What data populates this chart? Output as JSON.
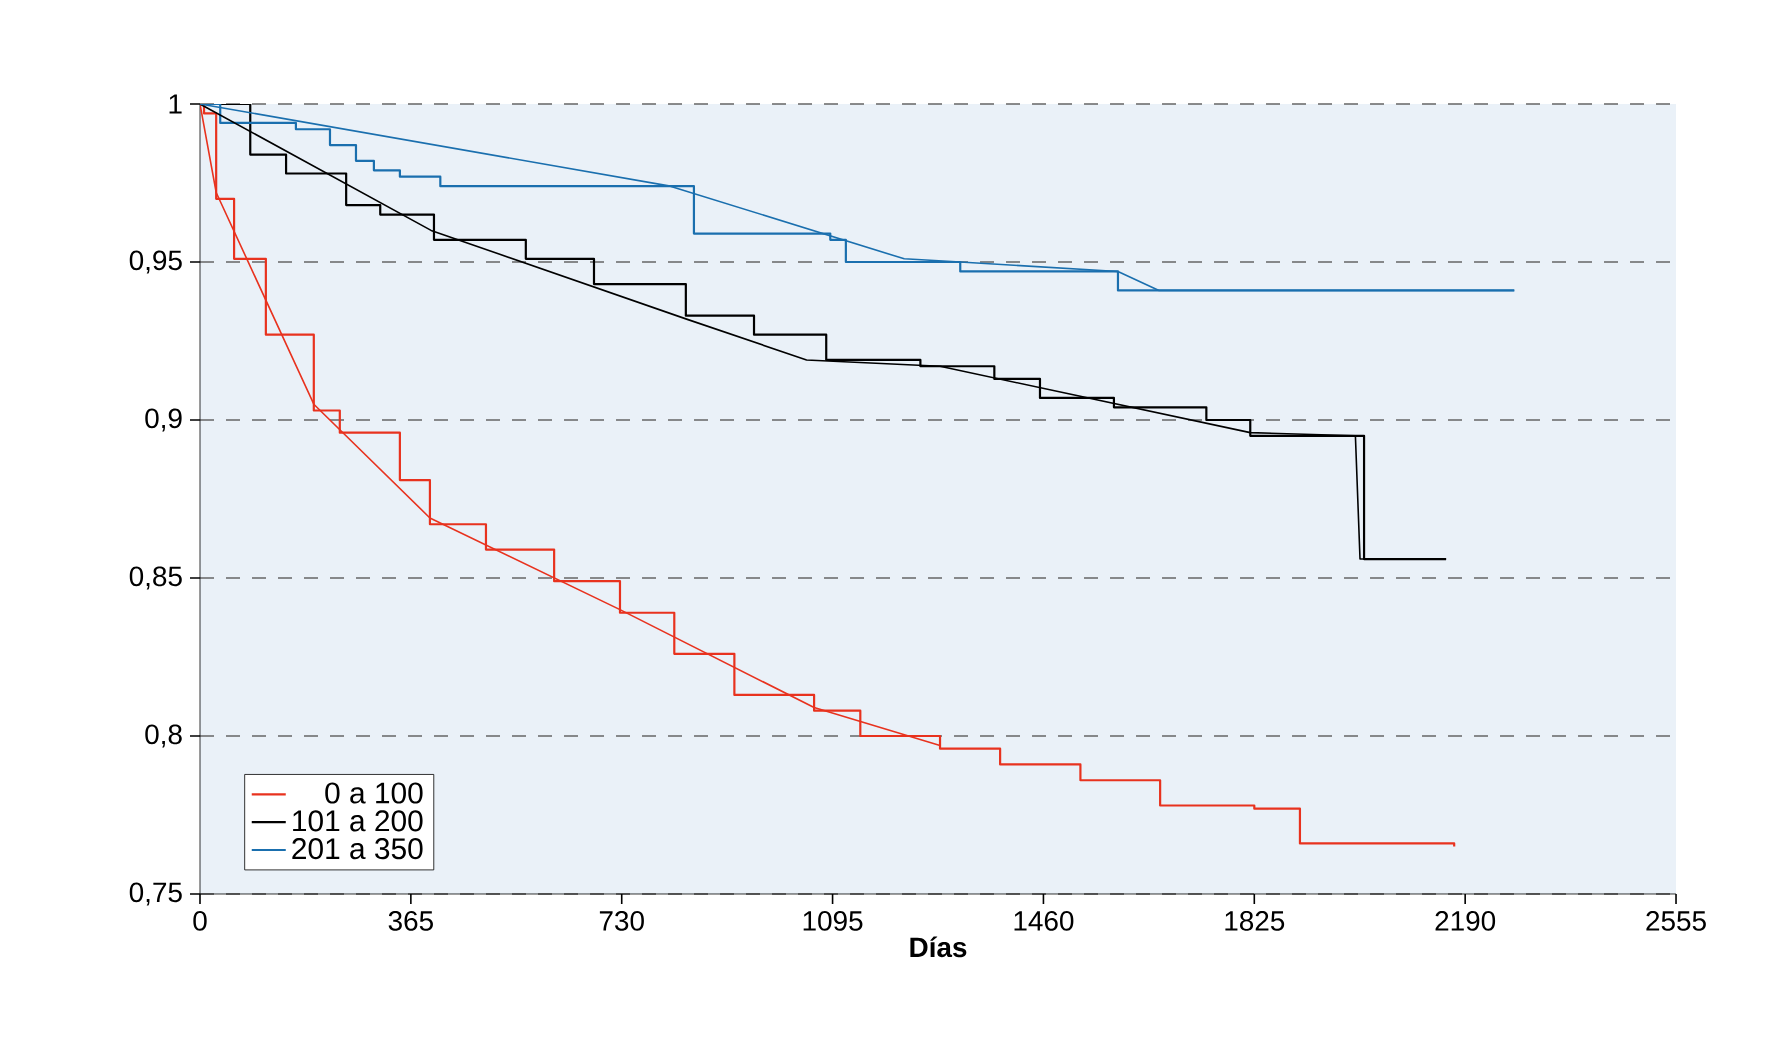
{
  "chart_data": {
    "type": "step",
    "xlabel": "Días",
    "xlim": [
      0,
      2555
    ],
    "ylim": [
      0.75,
      1
    ],
    "xticks": [
      0,
      365,
      730,
      1095,
      1460,
      1825,
      2190,
      2555
    ],
    "yticks": [
      {
        "value": 0.75,
        "label": "0,75"
      },
      {
        "value": 0.8,
        "label": "0,8"
      },
      {
        "value": 0.85,
        "label": "0,85"
      },
      {
        "value": 0.9,
        "label": "0,9"
      },
      {
        "value": 0.95,
        "label": "0,95"
      },
      1
    ],
    "grid": "y",
    "legend": "bottom left",
    "line_style": "solid",
    "series": [
      {
        "name": "0 a 100",
        "type": "step",
        "color": "#e8321e",
        "x": [
          0,
          7,
          28,
          59,
          114,
          197,
          242,
          346,
          398,
          495,
          613,
          727,
          821,
          925,
          1063,
          1143,
          1281,
          1385,
          1524,
          1662,
          1825,
          1904,
          2171
        ],
        "values": [
          1,
          0.997,
          0.97,
          0.951,
          0.927,
          0.903,
          0.896,
          0.881,
          0.867,
          0.859,
          0.849,
          0.839,
          0.826,
          0.813,
          0.808,
          0.8,
          0.796,
          0.791,
          0.786,
          0.778,
          0.777,
          0.766,
          0.765
        ]
      },
      {
        "name": "101 a 200",
        "type": "step",
        "color": "#000000",
        "x": [
          0,
          87,
          149,
          253,
          312,
          405,
          564,
          682,
          841,
          959,
          1084,
          1247,
          1375,
          1454,
          1582,
          1742,
          1818,
          2015,
          2157
        ],
        "values": [
          1,
          0.984,
          0.978,
          0.968,
          0.965,
          0.957,
          0.951,
          0.943,
          0.933,
          0.927,
          0.919,
          0.917,
          0.913,
          0.907,
          0.904,
          0.9,
          0.895,
          0.856,
          0.856
        ]
      },
      {
        "name": "201 a 350",
        "type": "step",
        "color": "#1a6fae",
        "x": [
          0,
          35,
          166,
          225,
          270,
          301,
          346,
          416,
          814,
          855,
          1091,
          1118,
          1316,
          1589,
          2275
        ],
        "values": [
          1,
          0.994,
          0.992,
          0.987,
          0.982,
          0.979,
          0.977,
          0.974,
          0.974,
          0.959,
          0.957,
          0.95,
          0.947,
          0.941,
          0.941
        ]
      },
      {
        "type": "line",
        "color": "#e8321e",
        "x": [
          0,
          28,
          197,
          398,
          727,
          1063,
          1281
        ],
        "values": [
          1,
          0.972,
          0.905,
          0.869,
          0.84,
          0.809,
          0.797
        ]
      },
      {
        "type": "line",
        "color": "#000000",
        "x": [
          0,
          400,
          841,
          1050,
          1281,
          1818,
          2000,
          2008,
          2157
        ],
        "values": [
          1,
          0.96,
          0.932,
          0.919,
          0.917,
          0.896,
          0.895,
          0.856,
          0.856
        ]
      },
      {
        "type": "line",
        "color": "#1a6fae",
        "x": [
          0,
          814,
          1219,
          1316,
          1589,
          1660,
          2275
        ],
        "values": [
          1,
          0.974,
          0.951,
          0.95,
          0.947,
          0.941,
          0.941
        ]
      }
    ]
  }
}
